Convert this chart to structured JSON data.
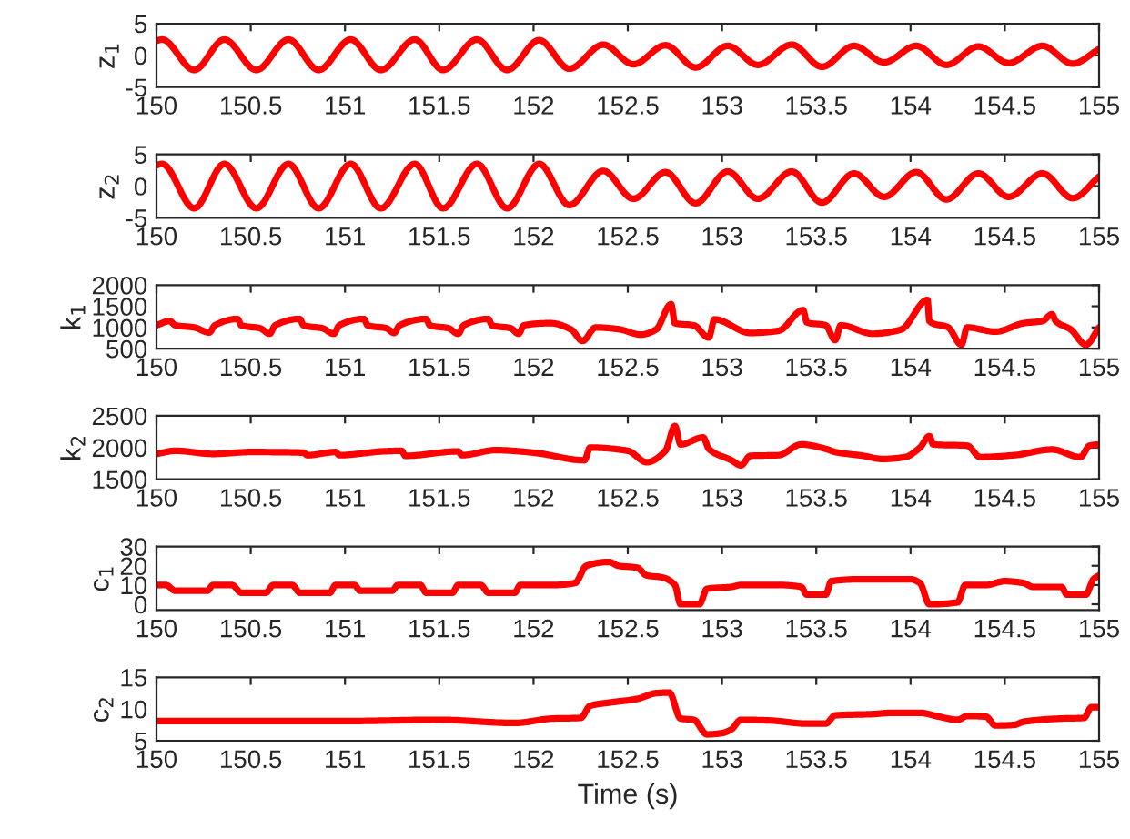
{
  "chart_data": [
    {
      "type": "line",
      "ylabel": "z$_{1}$",
      "xlim": [
        150,
        155
      ],
      "xticks": [
        150,
        150.5,
        151,
        151.5,
        152,
        152.5,
        153,
        153.5,
        154,
        154.5,
        155
      ],
      "ylim": [
        -5,
        5
      ],
      "yticks": [
        -5,
        0,
        5
      ],
      "series": [
        {
          "color": "#ff0000",
          "x": [
            150.0,
            150.03,
            150.2,
            150.36,
            150.53,
            150.7,
            150.86,
            151.03,
            151.19,
            151.37,
            151.52,
            151.7,
            151.86,
            152.03,
            152.19,
            152.37,
            152.53,
            152.7,
            152.86,
            153.03,
            153.19,
            153.37,
            153.53,
            153.7,
            153.86,
            154.03,
            154.19,
            154.36,
            154.52,
            154.7,
            154.86,
            155.0
          ],
          "values": [
            2.3,
            2.5,
            -2.3,
            2.5,
            -2.3,
            2.5,
            -2.3,
            2.5,
            -2.3,
            2.5,
            -2.3,
            2.5,
            -2.3,
            2.4,
            -2.1,
            1.7,
            -1.4,
            1.6,
            -1.9,
            1.5,
            -1.5,
            1.7,
            -1.8,
            1.5,
            -1.1,
            1.5,
            -1.5,
            1.4,
            -1.2,
            1.5,
            -1.3,
            1.0
          ]
        }
      ]
    },
    {
      "type": "line",
      "ylabel": "z$_{2}$",
      "xlim": [
        150,
        155
      ],
      "xticks": [
        150,
        150.5,
        151,
        151.5,
        152,
        152.5,
        153,
        153.5,
        154,
        154.5,
        155
      ],
      "ylim": [
        -5,
        5
      ],
      "yticks": [
        -5,
        0,
        5
      ],
      "series": [
        {
          "color": "#ff0000",
          "x": [
            150.0,
            150.03,
            150.2,
            150.36,
            150.53,
            150.7,
            150.86,
            151.03,
            151.19,
            151.37,
            151.52,
            151.7,
            151.86,
            152.03,
            152.19,
            152.37,
            152.53,
            152.7,
            152.86,
            153.03,
            153.19,
            153.37,
            153.53,
            153.7,
            153.86,
            154.03,
            154.19,
            154.36,
            154.52,
            154.7,
            154.86,
            155.0
          ],
          "values": [
            3.3,
            3.5,
            -3.5,
            3.5,
            -3.5,
            3.5,
            -3.5,
            3.5,
            -3.5,
            3.5,
            -3.5,
            3.5,
            -3.5,
            3.5,
            -3.0,
            2.4,
            -2.0,
            2.2,
            -2.7,
            2.3,
            -2.0,
            2.3,
            -2.6,
            2.0,
            -1.7,
            2.2,
            -2.1,
            2.0,
            -1.7,
            2.0,
            -1.9,
            1.5
          ]
        }
      ]
    },
    {
      "type": "line",
      "ylabel": "k$_{1}$",
      "xlim": [
        150,
        155
      ],
      "xticks": [
        150,
        150.5,
        151,
        151.5,
        152,
        152.5,
        153,
        153.5,
        154,
        154.5,
        155
      ],
      "ylim": [
        500,
        2000
      ],
      "yticks": [
        500,
        1000,
        1500,
        2000
      ],
      "series": [
        {
          "color": "#ff0000",
          "x": [
            150.0,
            150.07,
            150.1,
            150.2,
            150.28,
            150.31,
            150.43,
            150.45,
            150.55,
            150.6,
            150.63,
            150.76,
            150.78,
            150.88,
            150.94,
            150.97,
            151.1,
            151.12,
            151.22,
            151.26,
            151.29,
            151.43,
            151.45,
            151.55,
            151.6,
            151.63,
            151.76,
            151.78,
            151.88,
            151.92,
            151.95,
            152.09,
            152.2,
            152.26,
            152.33,
            152.45,
            152.57,
            152.65,
            152.73,
            152.75,
            152.85,
            152.93,
            152.96,
            153.15,
            153.3,
            153.43,
            153.45,
            153.55,
            153.6,
            153.63,
            153.8,
            153.95,
            154.09,
            154.1,
            154.2,
            154.27,
            154.3,
            154.45,
            154.6,
            154.7,
            154.75,
            154.77,
            154.85,
            154.93,
            155.0
          ],
          "values": [
            1050,
            1150,
            1050,
            1000,
            880,
            1050,
            1200,
            1050,
            980,
            850,
            1050,
            1200,
            1050,
            980,
            850,
            1050,
            1200,
            1050,
            980,
            870,
            1050,
            1200,
            1050,
            980,
            850,
            1050,
            1200,
            1050,
            980,
            850,
            1050,
            1100,
            950,
            680,
            1000,
            960,
            830,
            950,
            1550,
            1100,
            1050,
            760,
            1190,
            870,
            920,
            1410,
            1120,
            1050,
            700,
            1050,
            850,
            950,
            1650,
            1150,
            1000,
            590,
            1000,
            900,
            1100,
            1150,
            1310,
            1150,
            950,
            590,
            1000
          ]
        }
      ]
    },
    {
      "type": "line",
      "ylabel": "k$_{2}$",
      "xlim": [
        150,
        155
      ],
      "xticks": [
        150,
        150.5,
        151,
        151.5,
        152,
        152.5,
        153,
        153.5,
        154,
        154.5,
        155
      ],
      "ylim": [
        1500,
        2500
      ],
      "yticks": [
        1500,
        2000,
        2500
      ],
      "series": [
        {
          "color": "#ff0000",
          "x": [
            150.0,
            150.1,
            150.3,
            150.5,
            150.78,
            150.8,
            150.95,
            150.97,
            151.2,
            151.3,
            151.32,
            151.6,
            151.62,
            151.8,
            152.0,
            152.27,
            152.3,
            152.5,
            152.6,
            152.7,
            152.75,
            152.78,
            152.9,
            152.93,
            153.05,
            153.1,
            153.15,
            153.3,
            153.42,
            153.55,
            153.6,
            153.75,
            153.85,
            153.97,
            154.05,
            154.1,
            154.12,
            154.3,
            154.37,
            154.55,
            154.75,
            154.9,
            154.95,
            155.0
          ],
          "values": [
            1900,
            1950,
            1900,
            1930,
            1920,
            1880,
            1930,
            1880,
            1940,
            1950,
            1870,
            1940,
            1880,
            1960,
            1920,
            1800,
            2000,
            1950,
            1770,
            1950,
            2340,
            2050,
            2160,
            1980,
            1800,
            1720,
            1870,
            1880,
            2050,
            1980,
            1930,
            1870,
            1820,
            1850,
            2000,
            2180,
            2050,
            2030,
            1850,
            1880,
            1970,
            1850,
            2030,
            2050
          ]
        }
      ]
    },
    {
      "type": "line",
      "ylabel": "c$_{1}$",
      "xlim": [
        150,
        155
      ],
      "xticks": [
        150,
        150.5,
        151,
        151.5,
        152,
        152.5,
        153,
        153.5,
        154,
        154.5,
        155
      ],
      "ylim": [
        -3,
        30
      ],
      "yticks": [
        0,
        10,
        20,
        30
      ],
      "series": [
        {
          "color": "#ff0000",
          "x": [
            150.0,
            150.05,
            150.1,
            150.27,
            150.3,
            150.4,
            150.45,
            150.58,
            150.62,
            150.72,
            150.76,
            150.92,
            150.95,
            151.05,
            151.08,
            151.25,
            151.28,
            151.4,
            151.43,
            151.57,
            151.6,
            151.72,
            151.76,
            151.9,
            151.93,
            152.1,
            152.22,
            152.28,
            152.4,
            152.45,
            152.55,
            152.6,
            152.68,
            152.75,
            152.78,
            152.88,
            152.92,
            153.05,
            153.1,
            153.3,
            153.42,
            153.45,
            153.55,
            153.58,
            153.75,
            153.9,
            154.0,
            154.05,
            154.1,
            154.25,
            154.29,
            154.4,
            154.5,
            154.6,
            154.65,
            154.8,
            154.83,
            154.93,
            154.97,
            155.0
          ],
          "values": [
            10,
            10,
            7,
            7,
            10,
            10,
            6,
            6,
            10,
            10,
            6,
            6,
            10,
            10,
            7,
            7,
            10,
            10,
            6,
            6,
            10,
            10,
            6,
            6,
            10,
            10,
            11,
            20,
            22,
            20,
            19,
            15,
            14,
            10,
            0,
            0,
            8,
            9,
            10,
            10,
            9,
            5,
            5,
            12,
            13,
            13,
            13,
            11,
            0,
            1,
            10,
            10,
            12,
            11,
            9,
            9,
            5,
            5,
            13,
            15
          ]
        }
      ]
    },
    {
      "type": "line",
      "ylabel": "c$_{2}$",
      "xlabel": "Time (s)",
      "xlim": [
        150,
        155
      ],
      "xticks": [
        150,
        150.5,
        151,
        151.5,
        152,
        152.5,
        153,
        153.5,
        154,
        154.5,
        155
      ],
      "ylim": [
        5,
        15
      ],
      "yticks": [
        5,
        10,
        15
      ],
      "series": [
        {
          "color": "#ff0000",
          "x": [
            150.0,
            150.5,
            151.0,
            151.5,
            151.9,
            152.1,
            152.25,
            152.3,
            152.4,
            152.55,
            152.65,
            152.72,
            152.78,
            152.85,
            152.92,
            153.0,
            153.05,
            153.1,
            153.25,
            153.45,
            153.55,
            153.6,
            153.8,
            153.9,
            154.05,
            154.15,
            154.25,
            154.3,
            154.4,
            154.45,
            154.55,
            154.6,
            154.8,
            154.92,
            154.96,
            155.0
          ],
          "values": [
            8.1,
            8.1,
            8.1,
            8.3,
            7.8,
            8.5,
            8.6,
            10.5,
            11,
            11.6,
            12.5,
            12.6,
            8.5,
            8.3,
            6,
            6.2,
            6.8,
            8.3,
            8.2,
            7.7,
            7.7,
            9,
            9.2,
            9.4,
            9.4,
            8.8,
            8.3,
            8.9,
            8.8,
            7.4,
            7.5,
            8.0,
            8.5,
            8.6,
            10.3,
            10.3
          ]
        }
      ]
    }
  ]
}
